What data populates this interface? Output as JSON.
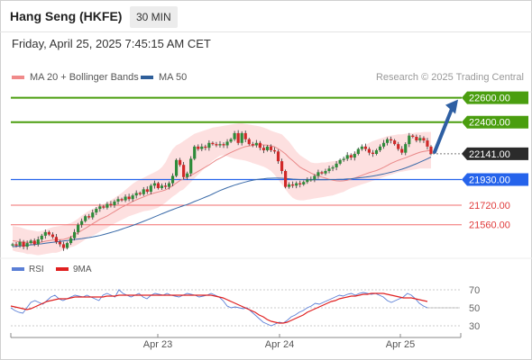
{
  "header": {
    "title": "Hang Seng (HKFE)",
    "timeframe": "30 MIN",
    "datetime": "Friday, April 25, 2025 7:45:15 AM CET"
  },
  "legend": {
    "bollinger": {
      "label": "MA 20 + Bollinger Bands",
      "color": "#f08a8a"
    },
    "ma50": {
      "label": "MA 50",
      "color": "#2f5f9a"
    },
    "credit": "Research © 2025 Trading Central"
  },
  "rsi_legend": {
    "rsi": {
      "label": "RSI",
      "color": "#5b7fd6"
    },
    "ma9": {
      "label": "9MA",
      "color": "#e02020"
    }
  },
  "colors": {
    "up_candle": "#2e8b3a",
    "down_candle": "#d02828",
    "target_green": "#4a9e0f",
    "current_dark": "#2b2b2b",
    "pivot_blue": "#2563eb",
    "support_red": "#f26d6d",
    "arrow_blue": "#2e5fa3",
    "band_fill": "#fde0e0"
  },
  "chart_data": [
    {
      "type": "candlestick",
      "ylim": [
        21300,
        22700
      ],
      "levels": [
        {
          "label": "22600.00",
          "value": 22600,
          "kind": "target"
        },
        {
          "label": "22400.00",
          "value": 22400,
          "kind": "target"
        },
        {
          "label": "22141.00",
          "value": 22141,
          "kind": "current"
        },
        {
          "label": "21930.00",
          "value": 21930,
          "kind": "pivot"
        },
        {
          "label": "21720.00",
          "value": 21720,
          "kind": "support"
        },
        {
          "label": "21560.00",
          "value": 21560,
          "kind": "support"
        }
      ],
      "x_ticks": [
        "Apr 23",
        "Apr 24",
        "Apr 25"
      ],
      "closes": [
        21400,
        21390,
        21420,
        21380,
        21410,
        21430,
        21400,
        21440,
        21470,
        21500,
        21480,
        21460,
        21420,
        21400,
        21370,
        21410,
        21450,
        21500,
        21560,
        21590,
        21630,
        21620,
        21660,
        21690,
        21710,
        21700,
        21730,
        21720,
        21750,
        21770,
        21760,
        21790,
        21770,
        21800,
        21820,
        21810,
        21850,
        21830,
        21880,
        21900,
        21860,
        21880,
        21870,
        21900,
        21960,
        22090,
        22050,
        21950,
        21980,
        22100,
        22200,
        22180,
        22200,
        22190,
        22230,
        22220,
        22210,
        22220,
        22210,
        22240,
        22260,
        22310,
        22230,
        22310,
        22260,
        22220,
        22210,
        22230,
        22190,
        22170,
        22200,
        22170,
        22160,
        22080,
        22000,
        21870,
        21890,
        21880,
        21900,
        21890,
        21910,
        21930,
        21930,
        21960,
        21990,
        21980,
        22000,
        22020,
        22030,
        22060,
        22090,
        22100,
        22130,
        22110,
        22140,
        22180,
        22200,
        22180,
        22150,
        22140,
        22170,
        22200,
        22230,
        22260,
        22250,
        22220,
        22180,
        22150,
        22220,
        22290,
        22280,
        22250,
        22270,
        22250,
        22200,
        22141
      ],
      "ma20": [
        21430,
        21425,
        21420,
        21418,
        21416,
        21415,
        21413,
        21412,
        21418,
        21425,
        21430,
        21434,
        21436,
        21438,
        21440,
        21448,
        21460,
        21476,
        21495,
        21514,
        21531,
        21549,
        21568,
        21586,
        21605,
        21618,
        21632,
        21650,
        21668,
        21686,
        21704,
        21718,
        21735,
        21750,
        21764,
        21776,
        21788,
        21800,
        21812,
        21820,
        21828,
        21836,
        21845,
        21860,
        21880,
        21902,
        21922,
        21935,
        21950,
        21965,
        21980,
        21998,
        22015,
        22032,
        22050,
        22070,
        22090,
        22105,
        22120,
        22137,
        22152,
        22165,
        22178,
        22190,
        22200,
        22205,
        22210,
        22215,
        22216,
        22214,
        22212,
        22206,
        22198,
        22182,
        22162,
        22140,
        22110,
        22085,
        22058,
        22032,
        22015,
        21999,
        21983,
        21970,
        21960,
        21950,
        21942,
        21932,
        21925,
        21920,
        21918,
        21920,
        21925,
        21932,
        21942,
        21952,
        21965,
        21976,
        21986,
        21995,
        22004,
        22016,
        22030,
        22046,
        22062,
        22075,
        22088,
        22098,
        22108,
        22120,
        22132,
        22144,
        22154,
        22160,
        22165,
        22170
      ],
      "upper": [
        21550,
        21545,
        21540,
        21530,
        21520,
        21515,
        21510,
        21505,
        21510,
        21515,
        21530,
        21540,
        21545,
        21550,
        21555,
        21565,
        21575,
        21590,
        21610,
        21635,
        21655,
        21675,
        21690,
        21705,
        21720,
        21730,
        21745,
        21760,
        21780,
        21800,
        21820,
        21845,
        21870,
        21895,
        21915,
        21930,
        21945,
        21960,
        21975,
        21990,
        22005,
        22030,
        22070,
        22130,
        22180,
        22210,
        22225,
        22245,
        22265,
        22285,
        22305,
        22315,
        22325,
        22335,
        22345,
        22355,
        22360,
        22365,
        22370,
        22375,
        22380,
        22385,
        22390,
        22390,
        22385,
        22380,
        22375,
        22370,
        22365,
        22355,
        22345,
        22330,
        22320,
        22310,
        22300,
        22270,
        22240,
        22200,
        22160,
        22130,
        22110,
        22090,
        22070,
        22065,
        22065,
        22070,
        22070,
        22075,
        22080,
        22085,
        22090,
        22100,
        22115,
        22130,
        22150,
        22170,
        22190,
        22210,
        22230,
        22245,
        22255,
        22265,
        22275,
        22285,
        22290,
        22295,
        22300,
        22300,
        22305,
        22310,
        22310,
        22315,
        22315,
        22320,
        22320,
        22320
      ],
      "lower": [
        21350,
        21340,
        21335,
        21330,
        21320,
        21320,
        21315,
        21310,
        21315,
        21320,
        21325,
        21330,
        21330,
        21340,
        21355,
        21365,
        21375,
        21385,
        21400,
        21420,
        21440,
        21455,
        21470,
        21485,
        21505,
        21520,
        21535,
        21555,
        21570,
        21585,
        21600,
        21615,
        21630,
        21640,
        21650,
        21660,
        21670,
        21675,
        21680,
        21690,
        21700,
        21720,
        21740,
        21765,
        21790,
        21810,
        21835,
        21850,
        21880,
        21910,
        21940,
        21970,
        22000,
        22030,
        22060,
        22085,
        22105,
        22125,
        22130,
        22120,
        22110,
        22100,
        22095,
        22090,
        22085,
        22075,
        22065,
        22055,
        22045,
        22035,
        22020,
        22000,
        21970,
        21930,
        21890,
        21850,
        21810,
        21780,
        21765,
        21760,
        21760,
        21765,
        21770,
        21775,
        21780,
        21785,
        21790,
        21795,
        21800,
        21810,
        21820,
        21830,
        21845,
        21860,
        21870,
        21880,
        21890,
        21900,
        21910,
        21920,
        21930,
        21940,
        21950,
        21960,
        21970,
        21980,
        21990,
        21995,
        22000,
        22005,
        22010,
        22015,
        22020,
        22020,
        22020,
        22020
      ],
      "ma50": [
        21380,
        21383,
        21386,
        21389,
        21392,
        21395,
        21398,
        21401,
        21404,
        21408,
        21412,
        21416,
        21420,
        21423,
        21427,
        21431,
        21435,
        21439,
        21443,
        21447,
        21451,
        21455,
        21460,
        21466,
        21472,
        21480,
        21488,
        21496,
        21505,
        21514,
        21524,
        21534,
        21544,
        21554,
        21565,
        21576,
        21588,
        21600,
        21612,
        21625,
        21637,
        21649,
        21661,
        21673,
        21684,
        21696,
        21706,
        21716,
        21726,
        21738,
        21750,
        21762,
        21774,
        21786,
        21798,
        21812,
        21826,
        21840,
        21852,
        21864,
        21874,
        21884,
        21893,
        21902,
        21910,
        21918,
        21924,
        21930,
        21934,
        21937,
        21940,
        21941,
        21942,
        21942,
        21941,
        21939,
        21937,
        21934,
        21932,
        21930,
        21929,
        21928,
        21928,
        21928,
        21928,
        21928,
        21928,
        21929,
        21930,
        21931,
        21932,
        21933,
        21935,
        21937,
        21940,
        21943,
        21946,
        21950,
        21954,
        21959,
        21964,
        21970,
        21976,
        21983,
        21990,
        21998,
        22006,
        22015,
        22025,
        22036,
        22048,
        22060,
        22073,
        22086,
        22100,
        22114
      ]
    },
    {
      "type": "line",
      "title": "RSI",
      "ylim": [
        20,
        80
      ],
      "y_ticks": [
        70,
        50,
        30
      ],
      "series": [
        {
          "name": "RSI",
          "values": [
            50,
            47,
            45,
            44,
            50,
            56,
            58,
            56,
            54,
            58,
            62,
            64,
            60,
            58,
            60,
            62,
            64,
            63,
            62,
            64,
            62,
            60,
            58,
            64,
            66,
            64,
            62,
            70,
            66,
            64,
            62,
            64,
            66,
            62,
            60,
            64,
            66,
            65,
            64,
            66,
            64,
            63,
            62,
            64,
            66,
            65,
            64,
            62,
            63,
            64,
            66,
            64,
            62,
            58,
            52,
            50,
            51,
            50,
            49,
            50,
            46,
            42,
            38,
            34,
            32,
            30,
            32,
            34,
            33,
            36,
            40,
            42,
            45,
            47,
            50,
            52,
            55,
            54,
            56,
            58,
            60,
            62,
            64,
            63,
            65,
            66,
            64,
            66,
            67,
            66,
            65,
            66,
            64,
            62,
            58,
            56,
            58,
            60,
            62,
            66,
            64,
            60,
            55,
            52,
            50
          ]
        },
        {
          "name": "9MA",
          "values": [
            52,
            51,
            50,
            49,
            48,
            49,
            51,
            53,
            55,
            57,
            58,
            59,
            60,
            60,
            60,
            61,
            62,
            62,
            62,
            62,
            62,
            62,
            62,
            62,
            63,
            63,
            63,
            64,
            64,
            64,
            64,
            64,
            64,
            64,
            64,
            64,
            64,
            64,
            64,
            64,
            64,
            64,
            64,
            64,
            64,
            64,
            64,
            64,
            64,
            64,
            64,
            63,
            62,
            61,
            59,
            57,
            55,
            53,
            51,
            49,
            47,
            45,
            42,
            40,
            37,
            35,
            34,
            33,
            33,
            34,
            36,
            38,
            40,
            42,
            45,
            47,
            49,
            51,
            53,
            55,
            57,
            58,
            60,
            61,
            62,
            63,
            63,
            64,
            65,
            65,
            66,
            66,
            66,
            66,
            65,
            64,
            63,
            62,
            61,
            61,
            61,
            60,
            59,
            58,
            57
          ]
        }
      ]
    }
  ]
}
